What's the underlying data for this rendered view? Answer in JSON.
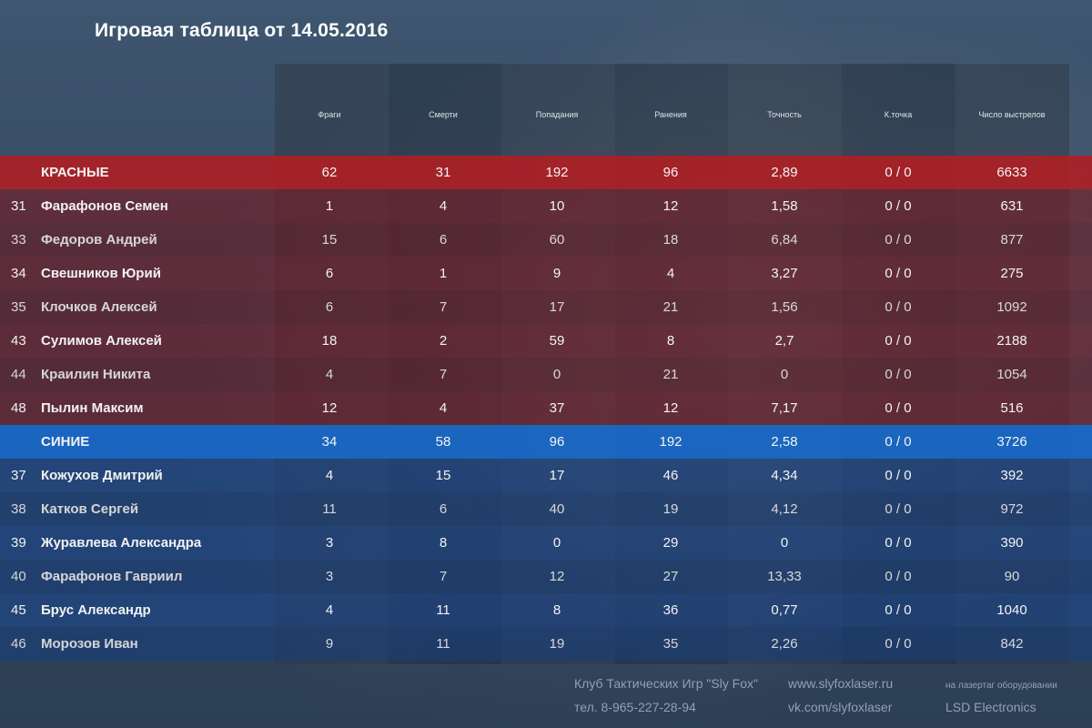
{
  "title": "Игровая таблица от 14.05.2016",
  "columns": [
    "Фраги",
    "Смерти",
    "Попадания",
    "Ранения",
    "Точность",
    "К.точка",
    "Число выстрелов"
  ],
  "teams": [
    {
      "name": "КРАСНЫЕ",
      "color": "#b21e22",
      "totals": [
        "62",
        "31",
        "192",
        "96",
        "2,89",
        "0 / 0",
        "6633"
      ],
      "players": [
        {
          "num": "31",
          "name": "Фарафонов Семен",
          "stats": [
            "1",
            "4",
            "10",
            "12",
            "1,58",
            "0 / 0",
            "631"
          ]
        },
        {
          "num": "33",
          "name": "Федоров Андрей",
          "stats": [
            "15",
            "6",
            "60",
            "18",
            "6,84",
            "0 / 0",
            "877"
          ]
        },
        {
          "num": "34",
          "name": "Свешников Юрий",
          "stats": [
            "6",
            "1",
            "9",
            "4",
            "3,27",
            "0 / 0",
            "275"
          ]
        },
        {
          "num": "35",
          "name": "Клочков Алексей",
          "stats": [
            "6",
            "7",
            "17",
            "21",
            "1,56",
            "0 / 0",
            "1092"
          ]
        },
        {
          "num": "43",
          "name": "Сулимов Алексей",
          "stats": [
            "18",
            "2",
            "59",
            "8",
            "2,7",
            "0 / 0",
            "2188"
          ]
        },
        {
          "num": "44",
          "name": "Краилин Никита",
          "stats": [
            "4",
            "7",
            "0",
            "21",
            "0",
            "0 / 0",
            "1054"
          ]
        },
        {
          "num": "48",
          "name": "Пылин Максим",
          "stats": [
            "12",
            "4",
            "37",
            "12",
            "7,17",
            "0 / 0",
            "516"
          ]
        }
      ]
    },
    {
      "name": "СИНИЕ",
      "color": "#1868c8",
      "totals": [
        "34",
        "58",
        "96",
        "192",
        "2,58",
        "0 / 0",
        "3726"
      ],
      "players": [
        {
          "num": "37",
          "name": "Кожухов Дмитрий",
          "stats": [
            "4",
            "15",
            "17",
            "46",
            "4,34",
            "0 / 0",
            "392"
          ]
        },
        {
          "num": "38",
          "name": "Катков Сергей",
          "stats": [
            "11",
            "6",
            "40",
            "19",
            "4,12",
            "0 / 0",
            "972"
          ]
        },
        {
          "num": "39",
          "name": "Журавлева Александра",
          "stats": [
            "3",
            "8",
            "0",
            "29",
            "0",
            "0 / 0",
            "390"
          ]
        },
        {
          "num": "40",
          "name": "Фарафонов Гавриил",
          "stats": [
            "3",
            "7",
            "12",
            "27",
            "13,33",
            "0 / 0",
            "90"
          ]
        },
        {
          "num": "45",
          "name": "Брус Александр",
          "stats": [
            "4",
            "11",
            "8",
            "36",
            "0,77",
            "0 / 0",
            "1040"
          ]
        },
        {
          "num": "46",
          "name": "Морозов Иван",
          "stats": [
            "9",
            "11",
            "19",
            "35",
            "2,26",
            "0 / 0",
            "842"
          ]
        }
      ]
    }
  ],
  "footer": {
    "club": "Клуб Тактических Игр \"Sly Fox\"",
    "phone": "тел. 8-965-227-28-94",
    "site": "www.slyfoxlaser.ru",
    "vk": "vk.com/slyfoxlaser",
    "equipment_note": "на лазертаг оборудовании",
    "equipment_brand": "LSD Electronics"
  }
}
